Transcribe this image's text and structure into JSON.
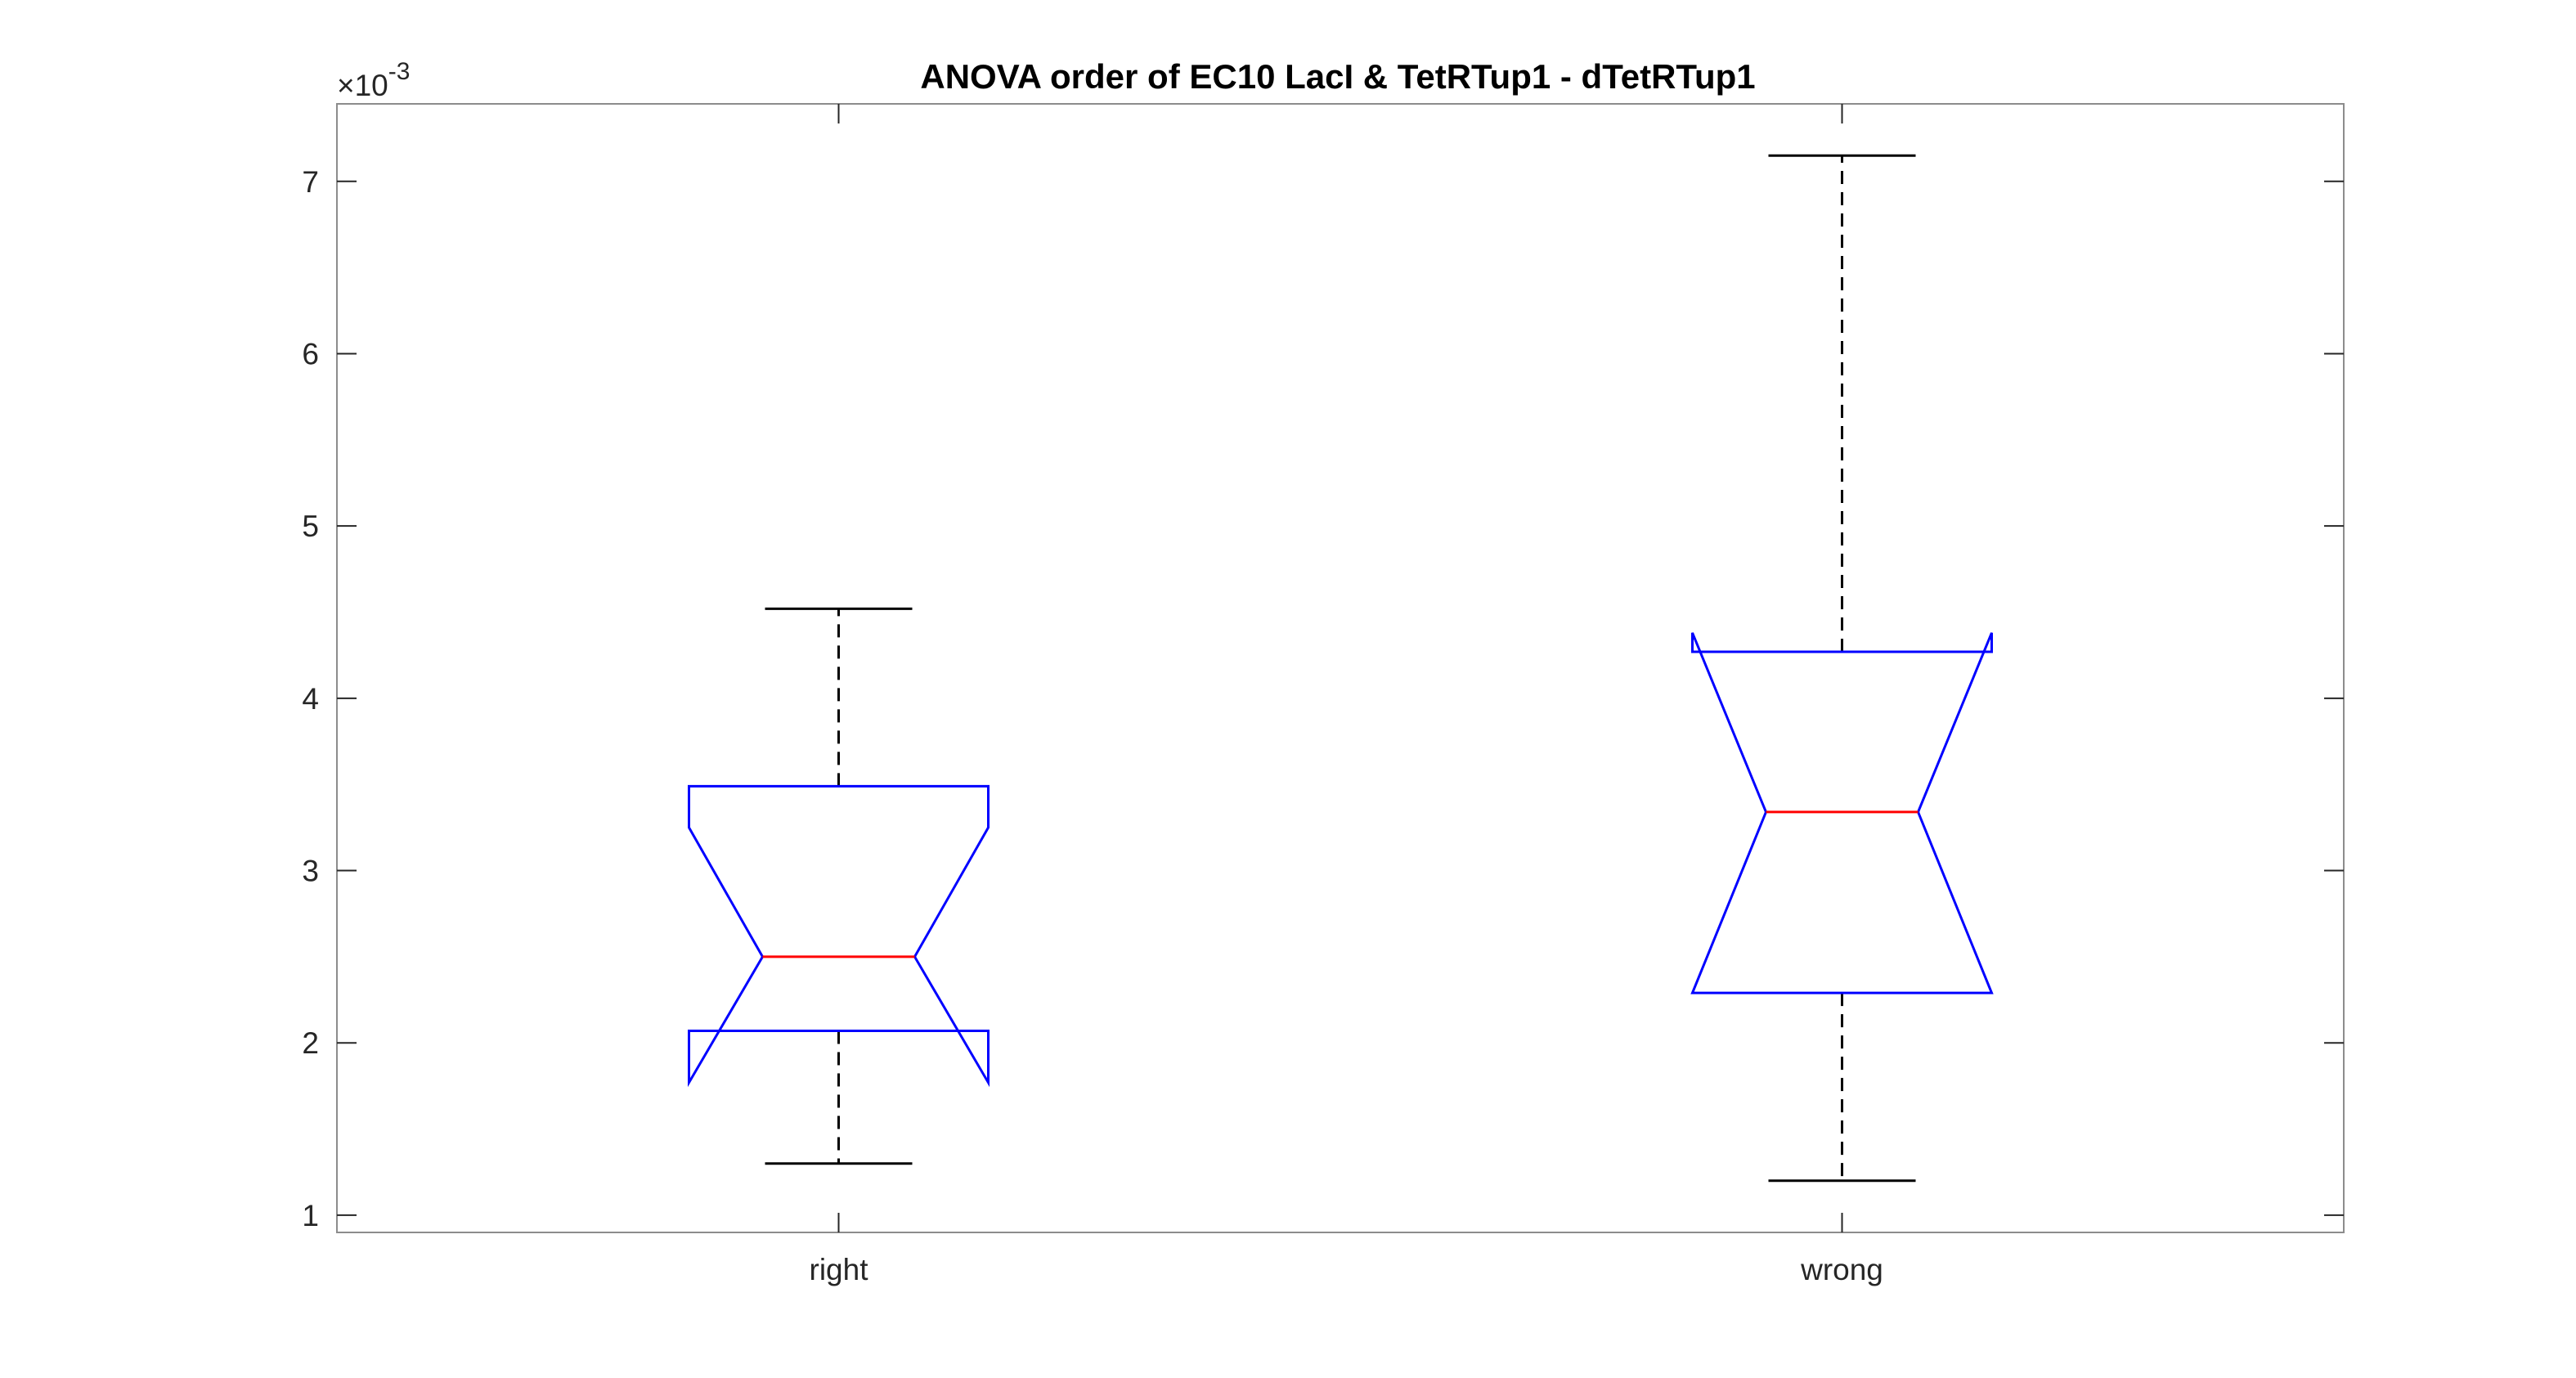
{
  "chart_data": {
    "type": "box",
    "title": "ANOVA order of EC10 LacI & TetRTup1 - dTetRTup1",
    "xlabel": "",
    "ylabel": "",
    "y_exponent": {
      "base": "×10",
      "power": "-3"
    },
    "ylim": [
      0.9,
      7.45
    ],
    "yticks": [
      1,
      2,
      3,
      4,
      5,
      6,
      7
    ],
    "ytick_labels": [
      "1",
      "2",
      "3",
      "4",
      "5",
      "6",
      "7"
    ],
    "categories": [
      "right",
      "wrong"
    ],
    "notched": true,
    "boxes": [
      {
        "label": "right",
        "whisker_low": 1.3,
        "q1": 2.07,
        "median": 2.5,
        "q3": 3.49,
        "whisker_high": 4.52,
        "notch_low": 1.77,
        "notch_high": 3.25
      },
      {
        "label": "wrong",
        "whisker_low": 1.2,
        "q1": 2.29,
        "median": 3.34,
        "q3": 4.27,
        "whisker_high": 7.15,
        "notch_low": 2.29,
        "notch_high": 4.38
      }
    ],
    "colors": {
      "box": "#0000ff",
      "median": "#ff0000",
      "whisker": "#000000",
      "axes": "#262626",
      "frame": "#8c8c8c"
    },
    "grid": false
  }
}
